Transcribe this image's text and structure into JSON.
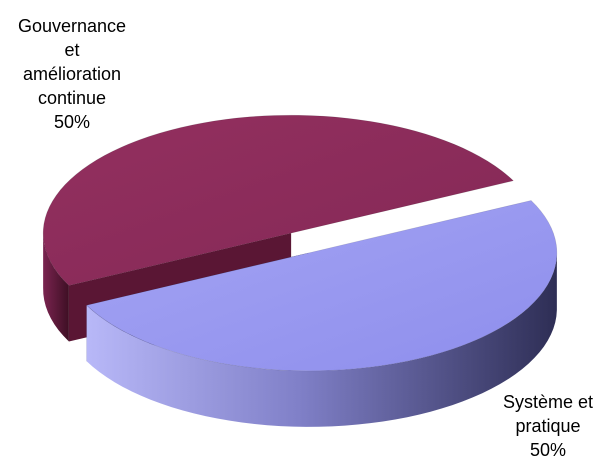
{
  "chart_data": {
    "type": "pie",
    "title": "",
    "slices": [
      {
        "label_lines": [
          "Gouvernance",
          "et",
          "amélioration",
          "continue"
        ],
        "value": 50,
        "value_label": "50%",
        "color": "#8B2B5A",
        "side_color": "#5A1634"
      },
      {
        "label_lines": [
          "Système et",
          "pratique"
        ],
        "value": 50,
        "value_label": "50%",
        "color": "#9A9AF0",
        "side_color": "#33335E"
      }
    ],
    "style": "3d-exploded",
    "legend": "none"
  }
}
